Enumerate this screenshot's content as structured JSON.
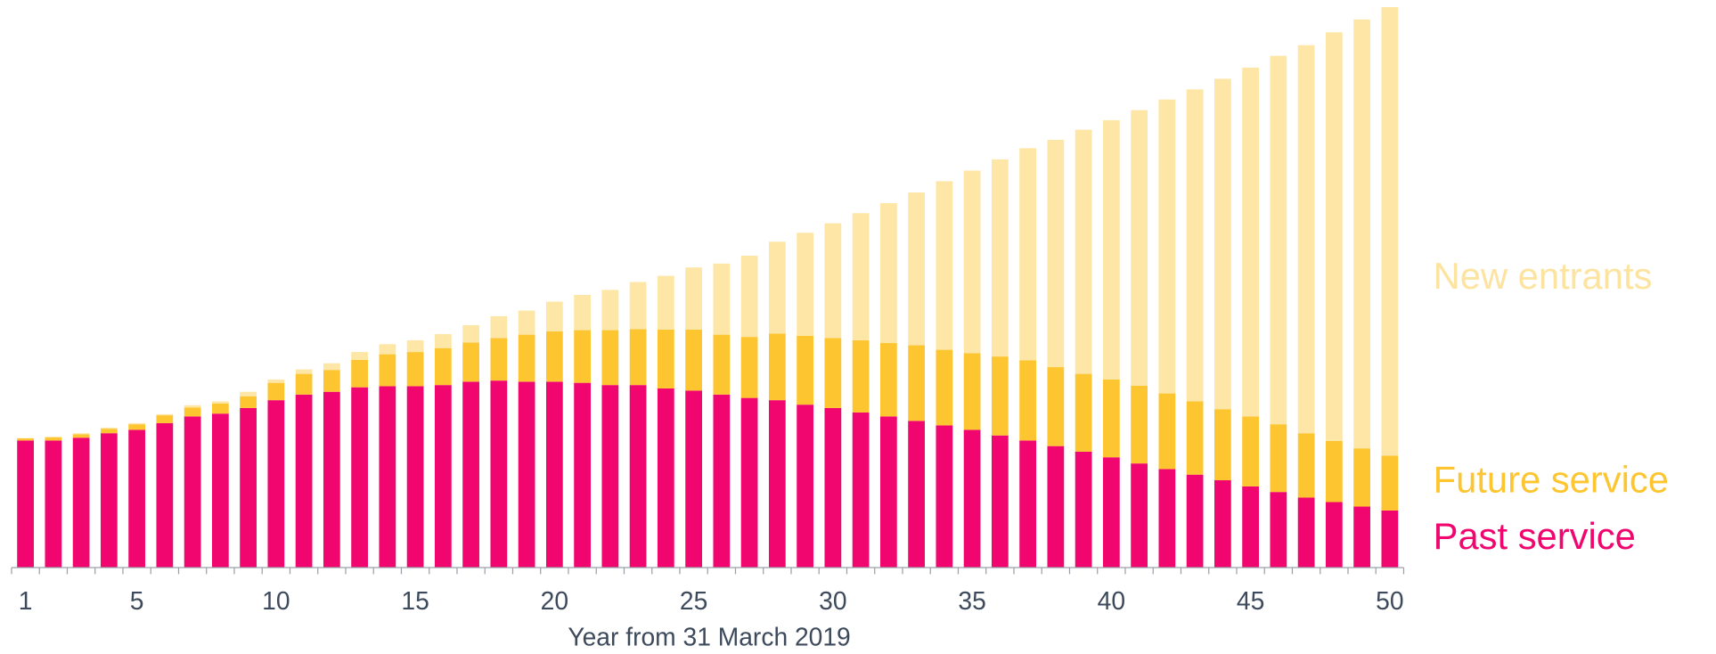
{
  "chart_data": {
    "type": "stacked-bar",
    "x_label": "Year from 31 March 2019",
    "categories": [
      "1",
      null,
      null,
      null,
      "5",
      null,
      null,
      null,
      null,
      "10",
      null,
      null,
      null,
      null,
      "15",
      null,
      null,
      null,
      null,
      "20",
      null,
      null,
      null,
      null,
      "25",
      null,
      null,
      null,
      null,
      "30",
      null,
      null,
      null,
      null,
      "35",
      null,
      null,
      null,
      null,
      "40",
      null,
      null,
      null,
      null,
      "45",
      null,
      null,
      null,
      null,
      "50"
    ],
    "ylim": [
      0,
      100
    ],
    "legend": "right",
    "series": [
      {
        "name": "Past service",
        "color": "#f0066e",
        "values": [
          22.7,
          22.7,
          23.2,
          24.0,
          24.6,
          25.8,
          27.0,
          27.5,
          28.5,
          29.9,
          30.9,
          31.4,
          32.2,
          32.4,
          32.4,
          32.6,
          33.2,
          33.4,
          33.2,
          33.2,
          33.0,
          32.6,
          32.6,
          32.0,
          31.6,
          30.9,
          30.3,
          29.9,
          29.1,
          28.5,
          27.7,
          27.0,
          26.2,
          25.4,
          24.6,
          23.6,
          22.7,
          21.7,
          20.7,
          19.7,
          18.6,
          17.6,
          16.6,
          15.6,
          14.5,
          13.5,
          12.5,
          11.7,
          10.9,
          10.2
        ]
      },
      {
        "name": "Future service",
        "color": "#fdc530",
        "values": [
          0.4,
          0.6,
          0.6,
          0.8,
          1.0,
          1.4,
          1.6,
          1.8,
          2.1,
          3.1,
          3.7,
          3.9,
          4.9,
          5.7,
          6.1,
          6.6,
          7.0,
          7.6,
          8.4,
          9.0,
          9.4,
          9.8,
          10.0,
          10.5,
          10.9,
          10.7,
          10.9,
          11.9,
          12.3,
          12.5,
          12.9,
          13.1,
          13.5,
          13.5,
          13.7,
          14.1,
          14.3,
          14.1,
          13.9,
          13.9,
          13.9,
          13.5,
          13.1,
          12.7,
          12.5,
          12.1,
          11.5,
          10.9,
          10.4,
          9.8
        ]
      },
      {
        "name": "New entrants",
        "color": "#fde6a6",
        "values": [
          0,
          0,
          0.2,
          0.2,
          0.2,
          0.2,
          0.4,
          0.4,
          0.8,
          0.6,
          0.8,
          1.2,
          1.4,
          1.8,
          2.1,
          2.5,
          3.1,
          3.9,
          4.3,
          5.3,
          6.3,
          7.2,
          8.4,
          9.6,
          11.1,
          12.7,
          14.5,
          16.4,
          18.4,
          20.5,
          22.7,
          25.0,
          27.3,
          30.1,
          32.6,
          35.2,
          37.9,
          40.6,
          43.6,
          46.3,
          49.2,
          52.5,
          55.7,
          59.0,
          62.3,
          65.8,
          69.3,
          73.0,
          76.6,
          80.1
        ]
      }
    ]
  }
}
